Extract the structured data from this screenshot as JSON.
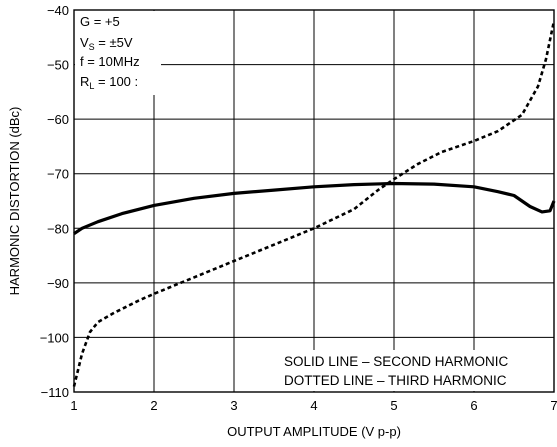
{
  "chart_data": {
    "type": "line",
    "title": "",
    "xlabel": "OUTPUT AMPLITUDE (V p-p)",
    "ylabel": "HARMONIC DISTORTION (dBc)",
    "xlim": [
      1,
      7
    ],
    "ylim": [
      -110,
      -40
    ],
    "xticks": [
      1,
      2,
      3,
      4,
      5,
      6,
      7
    ],
    "xtick_labels": [
      "1",
      "2",
      "3",
      "4",
      "5",
      "6",
      "7"
    ],
    "yticks": [
      -110,
      -100,
      -90,
      -80,
      -70,
      -60,
      -50,
      -40
    ],
    "ytick_labels": [
      "−110",
      "−100",
      "−90",
      "−80",
      "−70",
      "−60",
      "−50",
      "−40"
    ],
    "grid": true,
    "conditions": {
      "gain": "G = +5",
      "supply_main": "V",
      "supply_sub": "S",
      "supply_value": " = ±5V",
      "frequency": "f = 10MHz",
      "load_main": "R",
      "load_sub": "L",
      "load_value": " = 100 :"
    },
    "legend": {
      "placement": "bottom-right",
      "solid": "SOLID LINE – SECOND HARMONIC",
      "dotted": "DOTTED LINE – THIRD HARMONIC"
    },
    "series": [
      {
        "style": "solid",
        "x": [
          1.0,
          1.1,
          1.3,
          1.6,
          2.0,
          2.5,
          3.0,
          3.5,
          4.0,
          4.5,
          5.0,
          5.5,
          6.0,
          6.3,
          6.5,
          6.7,
          6.85,
          6.95,
          7.0
        ],
        "y": [
          -81.0,
          -80.0,
          -78.8,
          -77.3,
          -75.8,
          -74.5,
          -73.6,
          -73.0,
          -72.4,
          -72.0,
          -71.8,
          -71.9,
          -72.4,
          -73.3,
          -74.0,
          -76.0,
          -77.0,
          -76.8,
          -75.0
        ]
      },
      {
        "style": "dotted",
        "x": [
          1.0,
          1.1,
          1.2,
          1.3,
          1.5,
          1.8,
          2.0,
          2.5,
          3.0,
          3.5,
          4.0,
          4.5,
          4.8,
          5.0,
          5.3,
          5.6,
          6.0,
          6.3,
          6.6,
          6.8,
          6.9,
          7.0
        ],
        "y": [
          -109.0,
          -103.0,
          -99.0,
          -97.2,
          -95.5,
          -93.3,
          -92.0,
          -89.0,
          -86.0,
          -83.0,
          -80.0,
          -76.5,
          -73.0,
          -71.0,
          -68.2,
          -66.0,
          -64.0,
          -62.2,
          -59.2,
          -54.0,
          -49.0,
          -42.0
        ]
      }
    ]
  }
}
